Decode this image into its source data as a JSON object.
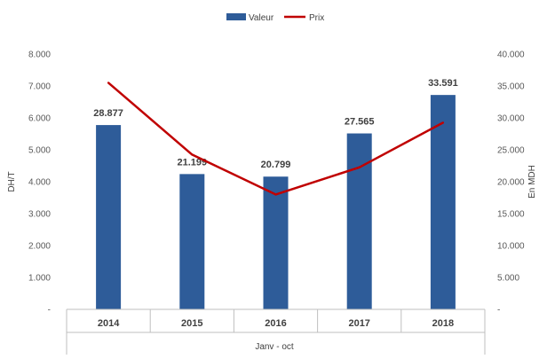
{
  "chart_data": {
    "type": "bar",
    "categories": [
      "2014",
      "2015",
      "2016",
      "2017",
      "2018"
    ],
    "series": [
      {
        "name": "Valeur",
        "type": "bar",
        "axis": "right",
        "values": [
          28877,
          21199,
          20799,
          27565,
          33591
        ],
        "data_labels": [
          "28.877",
          "21.199",
          "20.799",
          "27.565",
          "33.591"
        ],
        "color": "#2E5C99"
      },
      {
        "name": "Prix",
        "type": "line",
        "axis": "left",
        "values": [
          7100,
          4850,
          3600,
          4450,
          5850
        ],
        "color": "#C00000"
      }
    ],
    "xlabel": "Janv - oct",
    "ylabel_left": "DH/T",
    "ylabel_right": "En MDH",
    "ylim_left": [
      0,
      8000
    ],
    "ylim_right": [
      0,
      40000
    ],
    "yticks_left": [
      "-",
      "1.000",
      "2.000",
      "3.000",
      "4.000",
      "5.000",
      "6.000",
      "7.000",
      "8.000"
    ],
    "yticks_right": [
      "-",
      "5.000",
      "10.000",
      "15.000",
      "20.000",
      "25.000",
      "30.000",
      "35.000",
      "40.000"
    ],
    "legend_position": "top-center",
    "grid": false
  }
}
